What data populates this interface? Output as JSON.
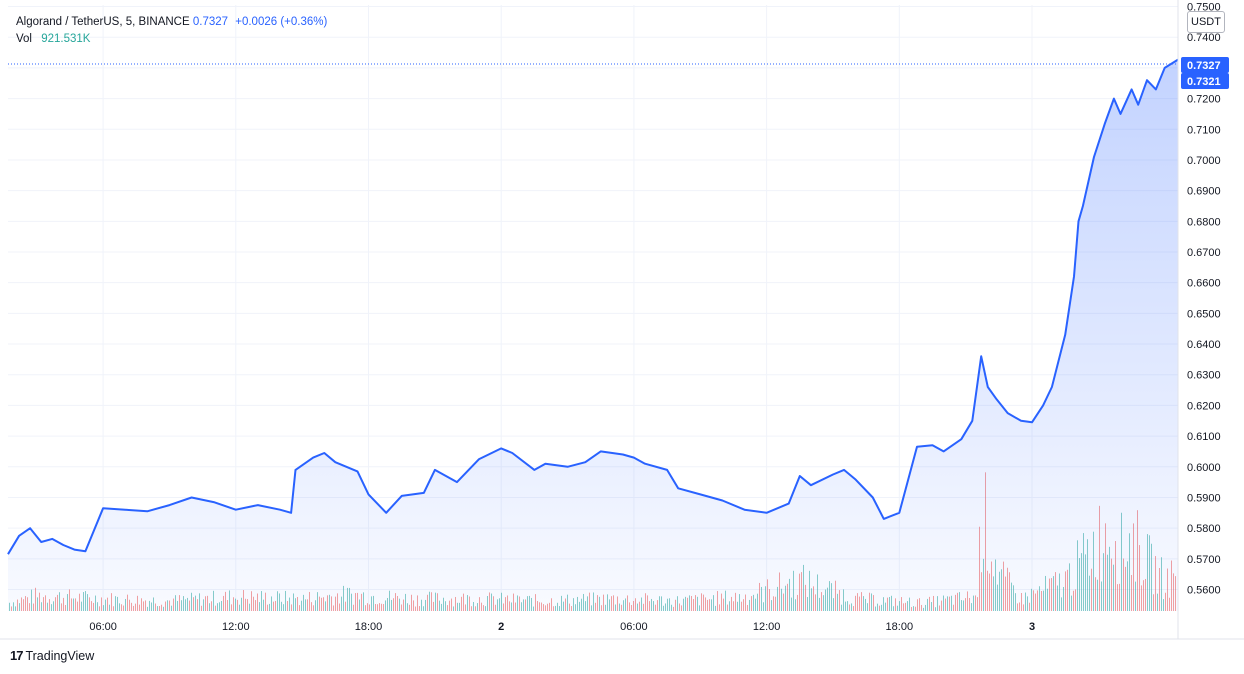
{
  "header": {
    "symbol": "Algorand / TetherUS, 5, BINANCE",
    "last_price": "0.7327",
    "change": "+0.0026 (+0.36%)",
    "vol_label": "Vol",
    "vol_value": "921.531K"
  },
  "unit_button": "USDT",
  "branding": {
    "logo": "17",
    "name": "TradingView"
  },
  "colors": {
    "line": "#2962ff",
    "up_volume": "#26a69a",
    "down_volume": "#ef5350",
    "grid": "#f0f3fa",
    "price_tag": "#2962ff"
  },
  "price_tags": [
    "0.7327",
    "0.7321"
  ],
  "chart_data": {
    "type": "area",
    "title": "Algorand / TetherUS, 5, BINANCE",
    "xlabel": "",
    "ylabel": "",
    "ylim": [
      0.553,
      0.7505
    ],
    "y_ticks": [
      "0.7500",
      "0.7400",
      "0.7300",
      "0.7200",
      "0.7100",
      "0.7000",
      "0.6900",
      "0.6800",
      "0.6700",
      "0.6600",
      "0.6500",
      "0.6400",
      "0.6300",
      "0.6200",
      "0.6100",
      "0.6000",
      "0.5900",
      "0.5800",
      "0.5700",
      "0.5600"
    ],
    "x_range_hours": [
      1.7,
      54.6
    ],
    "x_ticks": [
      {
        "label": "06:00",
        "t": 6
      },
      {
        "label": "12:00",
        "t": 12
      },
      {
        "label": "18:00",
        "t": 18
      },
      {
        "label": "2",
        "t": 24
      },
      {
        "label": "06:00",
        "t": 30
      },
      {
        "label": "12:00",
        "t": 36
      },
      {
        "label": "18:00",
        "t": 42
      },
      {
        "label": "3",
        "t": 48
      }
    ],
    "series": [
      {
        "values_t": [
          1.7,
          2.2,
          2.7,
          3.2,
          3.7,
          4.2,
          4.7,
          5.2,
          6.0,
          7.0,
          8.0,
          9.0,
          10.0,
          11.0,
          12.0,
          13.0,
          14.0,
          14.5,
          14.7,
          15.5,
          16.0,
          16.5,
          17.5,
          18.0,
          18.8,
          19.5,
          20.5,
          21.0,
          22.0,
          23.0,
          24.0,
          24.5,
          25.5,
          26.0,
          27.0,
          27.8,
          28.5,
          29.5,
          30.0,
          30.5,
          31.5,
          32.0,
          33.0,
          34.0,
          35.0,
          36.0,
          37.0,
          37.5,
          38.0,
          39.0,
          39.5,
          40.0,
          40.8,
          41.3,
          42.0,
          42.8,
          43.5,
          44.0,
          44.8,
          45.3,
          45.7,
          46.0,
          46.4,
          46.9,
          47.5,
          48.0,
          48.5,
          48.9,
          49.5,
          49.9,
          50.1,
          50.3,
          50.8,
          51.3,
          51.7,
          52.0,
          52.5,
          52.8,
          53.2,
          53.6,
          54.0,
          54.6
        ],
        "values": [
          0.5715,
          0.5775,
          0.58,
          0.5755,
          0.5765,
          0.5745,
          0.573,
          0.5725,
          0.5865,
          0.586,
          0.5855,
          0.5875,
          0.59,
          0.5885,
          0.586,
          0.5875,
          0.586,
          0.585,
          0.599,
          0.603,
          0.6045,
          0.6015,
          0.5985,
          0.591,
          0.585,
          0.5905,
          0.5915,
          0.599,
          0.595,
          0.6025,
          0.606,
          0.6045,
          0.599,
          0.601,
          0.6,
          0.6015,
          0.605,
          0.604,
          0.603,
          0.601,
          0.599,
          0.593,
          0.591,
          0.589,
          0.586,
          0.585,
          0.588,
          0.597,
          0.594,
          0.5975,
          0.599,
          0.596,
          0.59,
          0.583,
          0.585,
          0.6065,
          0.607,
          0.605,
          0.609,
          0.615,
          0.636,
          0.626,
          0.622,
          0.6175,
          0.615,
          0.6145,
          0.62,
          0.626,
          0.643,
          0.662,
          0.68,
          0.685,
          0.701,
          0.712,
          0.72,
          0.715,
          0.723,
          0.718,
          0.726,
          0.723,
          0.73,
          0.7327
        ]
      }
    ],
    "volume": {
      "note_units": "relative height 0-1",
      "values_t": [
        1.7,
        3.0,
        6.0,
        9.0,
        12.0,
        15.0,
        17.0,
        20.0,
        23.0,
        26.0,
        29.0,
        32.0,
        35.0,
        37.5,
        40.0,
        43.0,
        45.5,
        45.7,
        46.5,
        47.5,
        49.5,
        50.5,
        51.0,
        51.6,
        52.0,
        52.5,
        53.0,
        53.5,
        54.0,
        54.5
      ],
      "values": [
        0.08,
        0.15,
        0.12,
        0.1,
        0.14,
        0.12,
        0.16,
        0.12,
        0.12,
        0.1,
        0.12,
        0.1,
        0.14,
        0.3,
        0.12,
        0.08,
        0.14,
        1.0,
        0.35,
        0.12,
        0.3,
        0.55,
        0.7,
        0.85,
        0.6,
        0.7,
        0.55,
        0.4,
        0.3,
        0.35
      ]
    }
  }
}
